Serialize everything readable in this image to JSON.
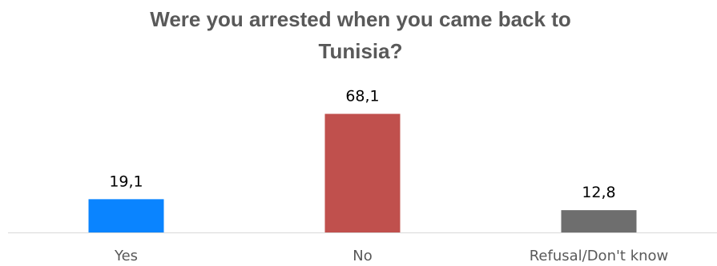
{
  "chart_data": {
    "type": "bar",
    "title": "Were you arrested when you came back to Tunisia?",
    "categories": [
      "Yes",
      "No",
      "Refusal/Don't know"
    ],
    "values": [
      19.1,
      68.1,
      12.8
    ],
    "data_labels": [
      "19,1",
      "68,1",
      "12,8"
    ],
    "colors": [
      "#0a84ff",
      "#c0504d",
      "#6e6e6e"
    ],
    "ylim": [
      0,
      100
    ],
    "grid": false,
    "legend": "none",
    "xlabel": "",
    "ylabel": ""
  }
}
